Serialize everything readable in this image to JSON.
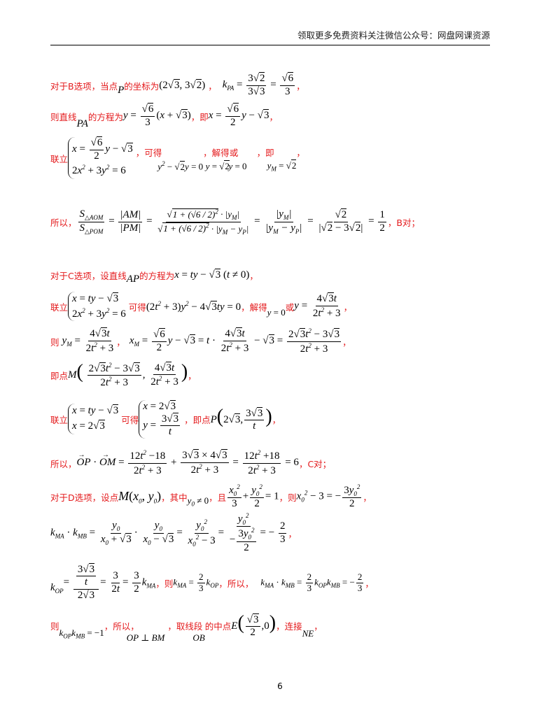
{
  "header": {
    "text": "领取更多免费资料关注微信公众号：网盘网课资源"
  },
  "lines": {
    "b1a": "对于B选项，当点",
    "b1b": "的坐标为",
    "b2a": "则直线",
    "b2b": "的方程为",
    "b2c": "，即",
    "b3a": "联立",
    "b3b": "，可得",
    "b3c": "，解得",
    "b3d": "或",
    "b3e": "，即",
    "b4a": "所以，",
    "b4b": "，B对；",
    "c1a": "对于C选项，设直线",
    "c1b": "的方程为",
    "c2a": "联立",
    "c2b": "可得",
    "c2c": "，解得",
    "c2d": "或",
    "c3a": "则",
    "c4a": "即点",
    "c5a": "联立",
    "c5b": "可得",
    "c5c": "，即点",
    "c6a": "所以，",
    "c6b": "，C对；",
    "d1a": "对于D选项，设点",
    "d1b": "，其中",
    "d1c": "，且",
    "d1d": "，则",
    "d3a": "，则",
    "d3b": "，所以，",
    "d4a": "则",
    "d4b": "，所以，",
    "d4c": "，取线段",
    "d4d": "的中点",
    "d4e": "，连接"
  },
  "page_number": "6"
}
